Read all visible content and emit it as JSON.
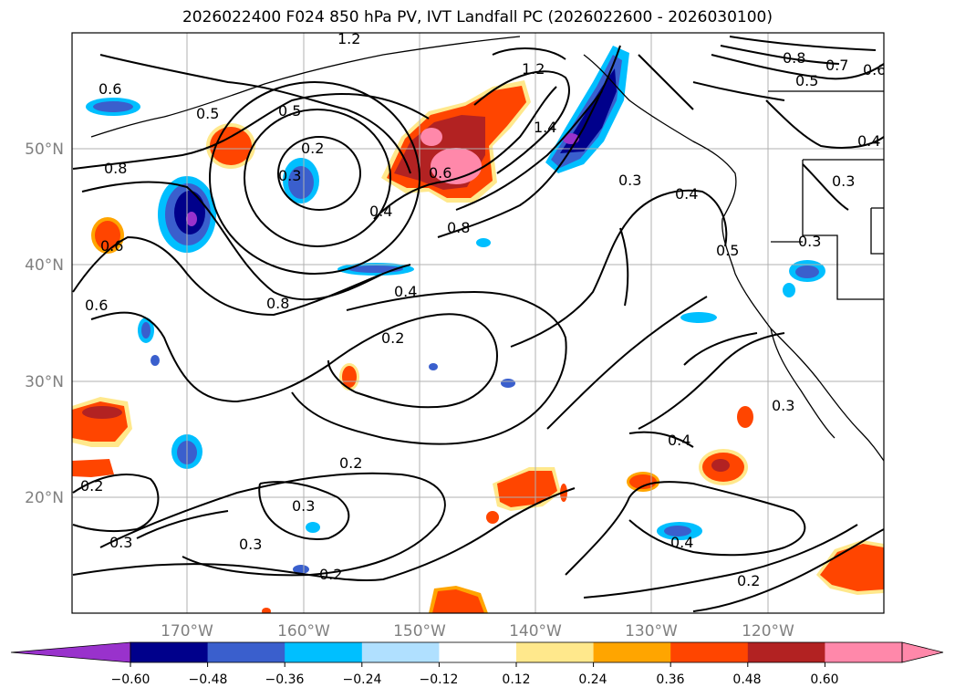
{
  "title": "2026022400 F024 850 hPa PV, IVT Landfall PC (2026022600 - 2026030100)",
  "lat_labels": [
    "50°N",
    "40°N",
    "30°N",
    "20°N"
  ],
  "lon_labels": [
    "170°W",
    "160°W",
    "150°W",
    "140°W",
    "130°W",
    "120°W"
  ],
  "contour_labels": [
    "1.2",
    "1.2",
    "0.5",
    "0.5",
    "0.2",
    "0.3",
    "0.8",
    "0.6",
    "0.6",
    "0.4",
    "0.6",
    "0.8",
    "1.4",
    "0.3",
    "0.4",
    "0.8",
    "0.8",
    "0.7",
    "0.5",
    "0.4",
    "0.3",
    "0.3",
    "0.5",
    "0.4",
    "0.2",
    "0.2",
    "0.3",
    "0.3",
    "0.2",
    "0.2",
    "0.3",
    "0.4",
    "0.4",
    "0.2",
    "0.3",
    "0.6",
    "0.6"
  ],
  "colorbar": {
    "ticks": [
      "−0.60",
      "−0.48",
      "−0.36",
      "−0.24",
      "−0.12",
      "0.12",
      "0.24",
      "0.36",
      "0.48",
      "0.60"
    ],
    "colors": [
      "#9932cc",
      "#00008b",
      "#3a5fcd",
      "#00bfff",
      "#b0e0ff",
      "#ffffff",
      "#ffe88c",
      "#ffa500",
      "#ff4500",
      "#b22222",
      "#ff88aa",
      "#ff88aa"
    ]
  },
  "map_extent": {
    "lon_min": -180,
    "lon_max": -110,
    "lat_min": 10,
    "lat_max": 60
  }
}
